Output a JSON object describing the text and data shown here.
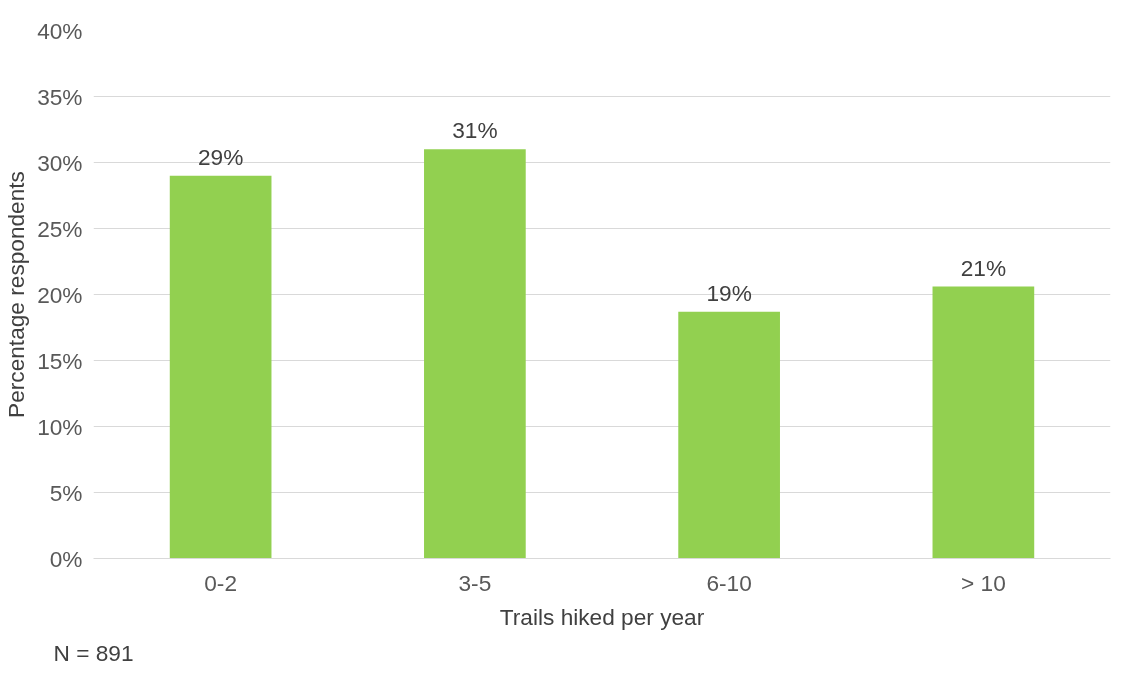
{
  "chart_data": {
    "type": "bar",
    "xlabel": "Trails hiked per year",
    "ylabel": "Percentage respondents",
    "categories": [
      "0-2",
      "3-5",
      "6-10",
      "> 10"
    ],
    "values": [
      29,
      31,
      18.7,
      20.6
    ],
    "value_labels": [
      "29%",
      "31%",
      "19%",
      "21%"
    ],
    "color": "#92d050",
    "ylim": [
      0,
      40
    ],
    "yticks": [
      {
        "value": 0,
        "label": "0%"
      },
      {
        "value": 5,
        "label": "5%"
      },
      {
        "value": 10,
        "label": "10%"
      },
      {
        "value": 15,
        "label": "15%"
      },
      {
        "value": 20,
        "label": "20%"
      },
      {
        "value": 25,
        "label": "25%"
      },
      {
        "value": 30,
        "label": "30%"
      },
      {
        "value": 35,
        "label": "35%"
      },
      {
        "value": 40,
        "label": "40%"
      }
    ],
    "grid": "y",
    "annotations": [
      "N  =  891"
    ]
  }
}
